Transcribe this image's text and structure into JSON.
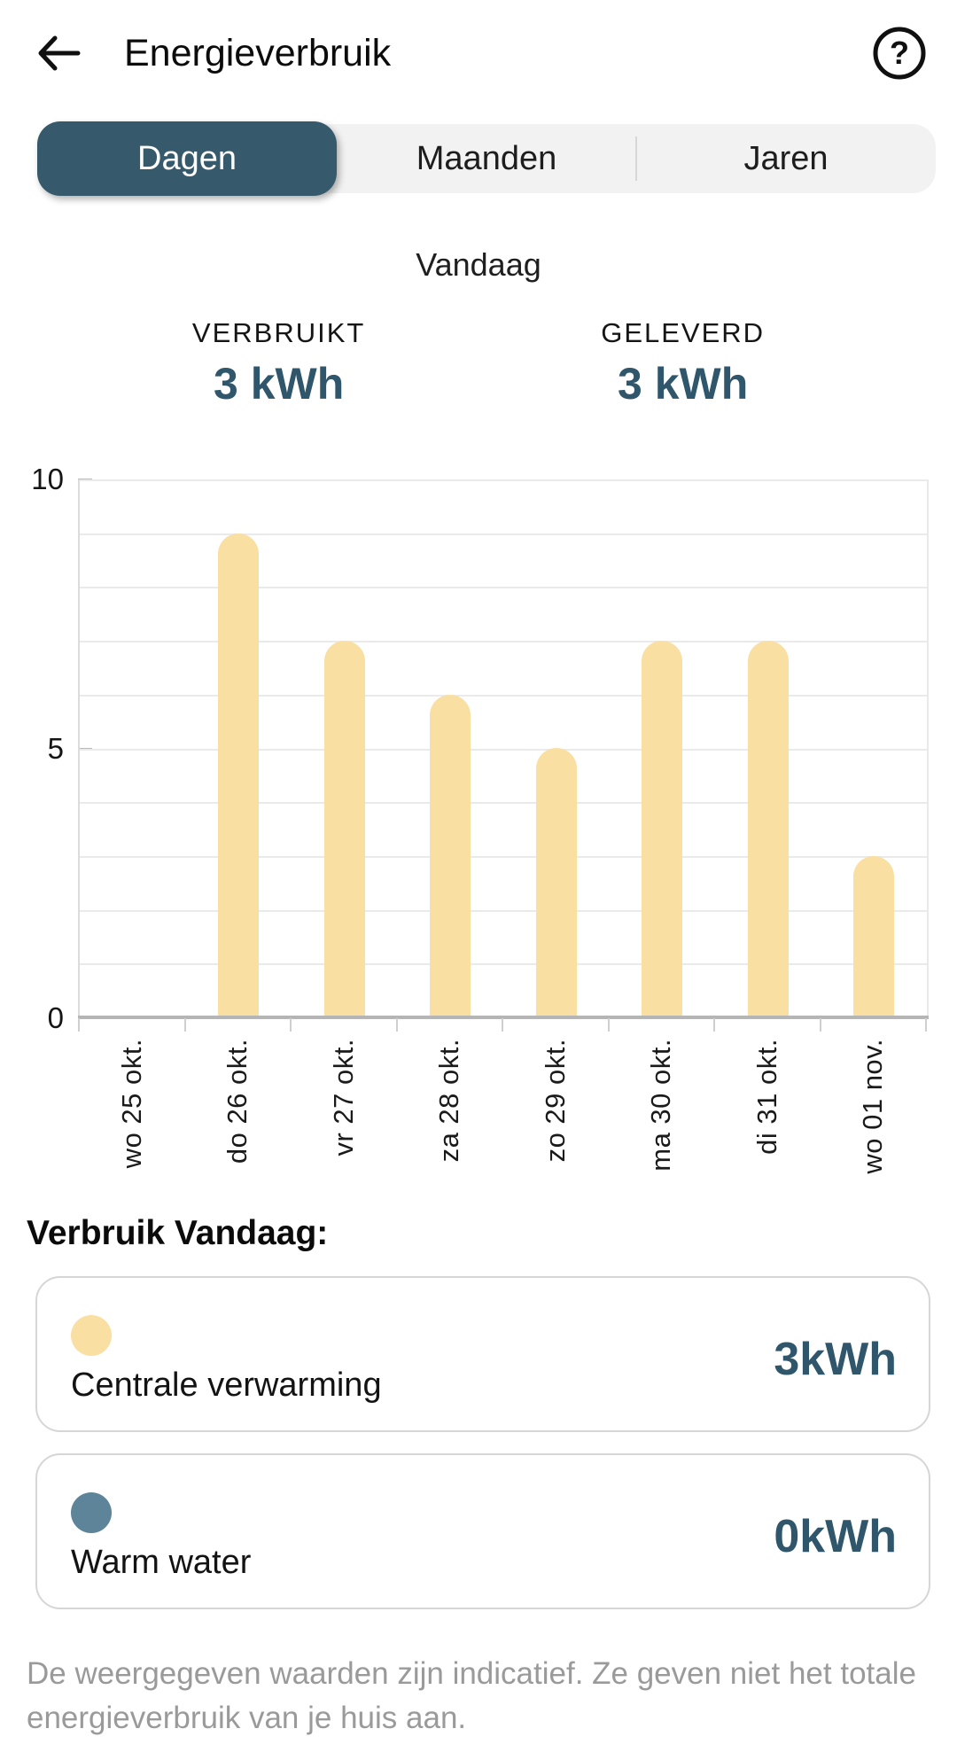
{
  "header": {
    "title": "Energieverbruik"
  },
  "icons": {
    "back": "arrow-left",
    "help": "question-mark",
    "help_glyph": "?"
  },
  "tabs": {
    "items": [
      {
        "label": "Dagen",
        "selected": true
      },
      {
        "label": "Maanden",
        "selected": false
      },
      {
        "label": "Jaren",
        "selected": false
      }
    ]
  },
  "period_label": "Vandaag",
  "stats": {
    "items": [
      {
        "label": "VERBRUIKT",
        "value": "3 kWh"
      },
      {
        "label": "GELEVERD",
        "value": "3 kWh"
      }
    ]
  },
  "chart_data": {
    "type": "bar",
    "title": "",
    "xlabel": "",
    "ylabel": "",
    "categories": [
      "wo 25 okt.",
      "do 26 okt.",
      "vr 27 okt.",
      "za 28 okt.",
      "zo 29 okt.",
      "ma 30 okt.",
      "di 31 okt.",
      "wo 01 nov."
    ],
    "values": [
      0,
      9,
      7,
      6,
      5,
      7,
      7,
      3
    ],
    "unit": "kWh",
    "ylim": [
      0,
      10
    ],
    "yticks": [
      0,
      5,
      10
    ],
    "grid": "horizontal gridline every 1 unit",
    "legend_position": "none",
    "bar_color": "#FADFA3"
  },
  "legend": {
    "heading": "Verbruik Vandaag:",
    "items": [
      {
        "name": "Centrale verwarming",
        "value": "3kWh",
        "color": "#FADFA3"
      },
      {
        "name": "Warm water",
        "value": "0kWh",
        "color": "#5E8499"
      }
    ]
  },
  "disclaimer": "De weergegeven waarden zijn indicatief. Ze geven niet het totale energieverbruik van je huis aan.",
  "colors": {
    "accent_teal": "#36596B",
    "value_teal": "#2F566B",
    "bar_yellow": "#FADFA3",
    "water_blue": "#5E8499",
    "tab_background": "#F2F2F2",
    "card_border": "#D6D6D6",
    "grid_line": "#EAEAEA",
    "axis_line": "#B5B5B5",
    "muted_text": "#9A9A9A"
  }
}
